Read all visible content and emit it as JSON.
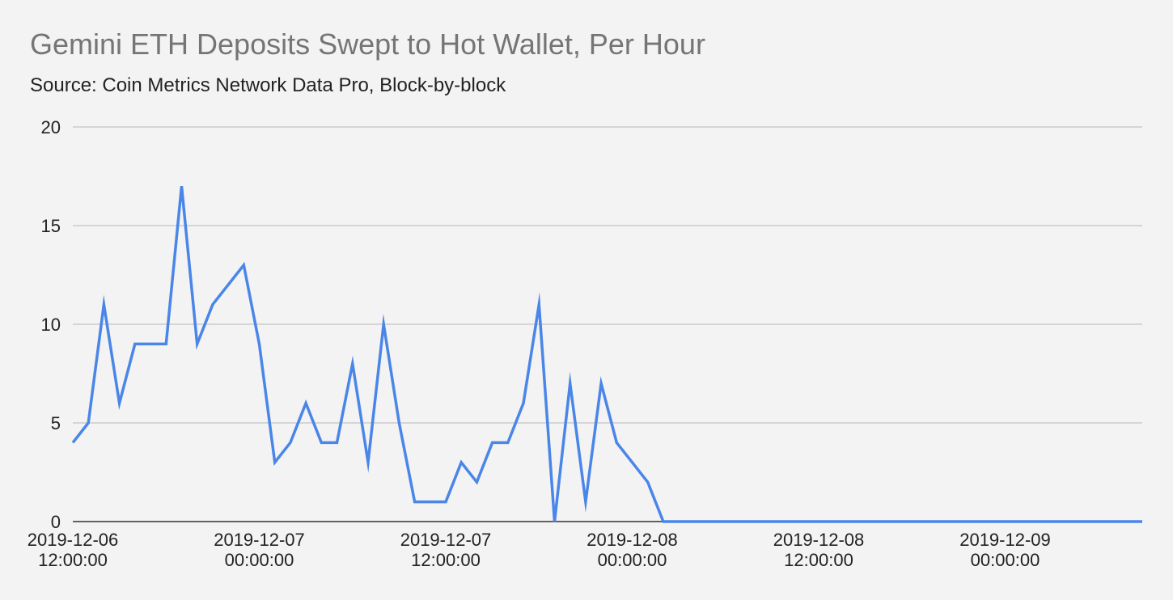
{
  "chart_data": {
    "type": "line",
    "title": "Gemini ETH Deposits Swept to Hot Wallet, Per Hour",
    "subtitle": "Source: Coin Metrics Network Data Pro, Block-by-block",
    "xlabel": "",
    "ylabel": "",
    "ylim": [
      0,
      20
    ],
    "y_ticks": [
      "0",
      "5",
      "10",
      "15",
      "20"
    ],
    "x_ticks": [
      {
        "date": "2019-12-06",
        "time": "12:00:00",
        "at": "2019-12-06T12:00:00"
      },
      {
        "date": "2019-12-07",
        "time": "00:00:00",
        "at": "2019-12-07T00:00:00"
      },
      {
        "date": "2019-12-07",
        "time": "12:00:00",
        "at": "2019-12-07T12:00:00"
      },
      {
        "date": "2019-12-08",
        "time": "00:00:00",
        "at": "2019-12-08T00:00:00"
      },
      {
        "date": "2019-12-08",
        "time": "12:00:00",
        "at": "2019-12-08T12:00:00"
      },
      {
        "date": "2019-12-09",
        "time": "00:00:00",
        "at": "2019-12-09T00:00:00"
      }
    ],
    "grid": true,
    "legend": "none",
    "series": [
      {
        "color": "#4a86e8",
        "start": "2019-12-06T12:00:00",
        "interval_hours": 1,
        "values": [
          4,
          5,
          11,
          6,
          9,
          9,
          9,
          17,
          9,
          11,
          12,
          13,
          9,
          3,
          4,
          6,
          4,
          4,
          8,
          3,
          10,
          5,
          1,
          1,
          1,
          3,
          2,
          4,
          4,
          6,
          11,
          0,
          7,
          1,
          7,
          4,
          3,
          2,
          0,
          0,
          0,
          0,
          0,
          0,
          0,
          0,
          0,
          0,
          0,
          0,
          0,
          0,
          0,
          0,
          0,
          0,
          0,
          0,
          0,
          0,
          0,
          0,
          0,
          0,
          0,
          0,
          0,
          0,
          0,
          0
        ]
      }
    ]
  },
  "colors": {
    "background": "#f3f3f3",
    "grid": "#b7b7b7",
    "line": "#4a86e8",
    "title": "#757575"
  }
}
